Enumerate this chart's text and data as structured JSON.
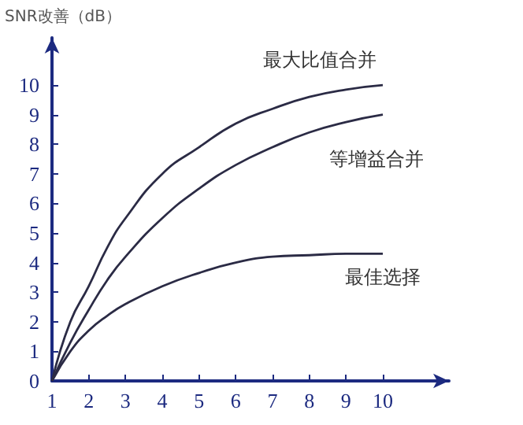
{
  "chart_data": {
    "type": "line",
    "ylabel": "SNR改善（dB）",
    "x": [
      1,
      1.5,
      2,
      2.5,
      3,
      4,
      5,
      6,
      7,
      8,
      9,
      10
    ],
    "series": [
      {
        "name": "最大比值合并",
        "color": "#2b2b45",
        "values": [
          0,
          2.0,
          3.2,
          4.5,
          5.5,
          7.0,
          7.9,
          8.7,
          9.2,
          9.6,
          9.85,
          10
        ]
      },
      {
        "name": "等增益合并",
        "color": "#2b2b45",
        "values": [
          0,
          1.3,
          2.4,
          3.4,
          4.2,
          5.5,
          6.5,
          7.3,
          7.9,
          8.4,
          8.75,
          9.0
        ]
      },
      {
        "name": "最佳选择",
        "color": "#2b2b45",
        "values": [
          0,
          1.0,
          1.7,
          2.2,
          2.6,
          3.2,
          3.65,
          4.0,
          4.2,
          4.25,
          4.3,
          4.3
        ]
      }
    ],
    "xlim": [
      1,
      11.8
    ],
    "ylim": [
      0,
      11.6
    ],
    "xticks": [
      1,
      2,
      3,
      4,
      5,
      6,
      7,
      8,
      9,
      10
    ],
    "yticks": [
      0,
      1,
      2,
      3,
      4,
      5,
      6,
      7,
      8,
      9,
      10
    ],
    "grid": false,
    "marker": "none",
    "line_style": "solid"
  }
}
